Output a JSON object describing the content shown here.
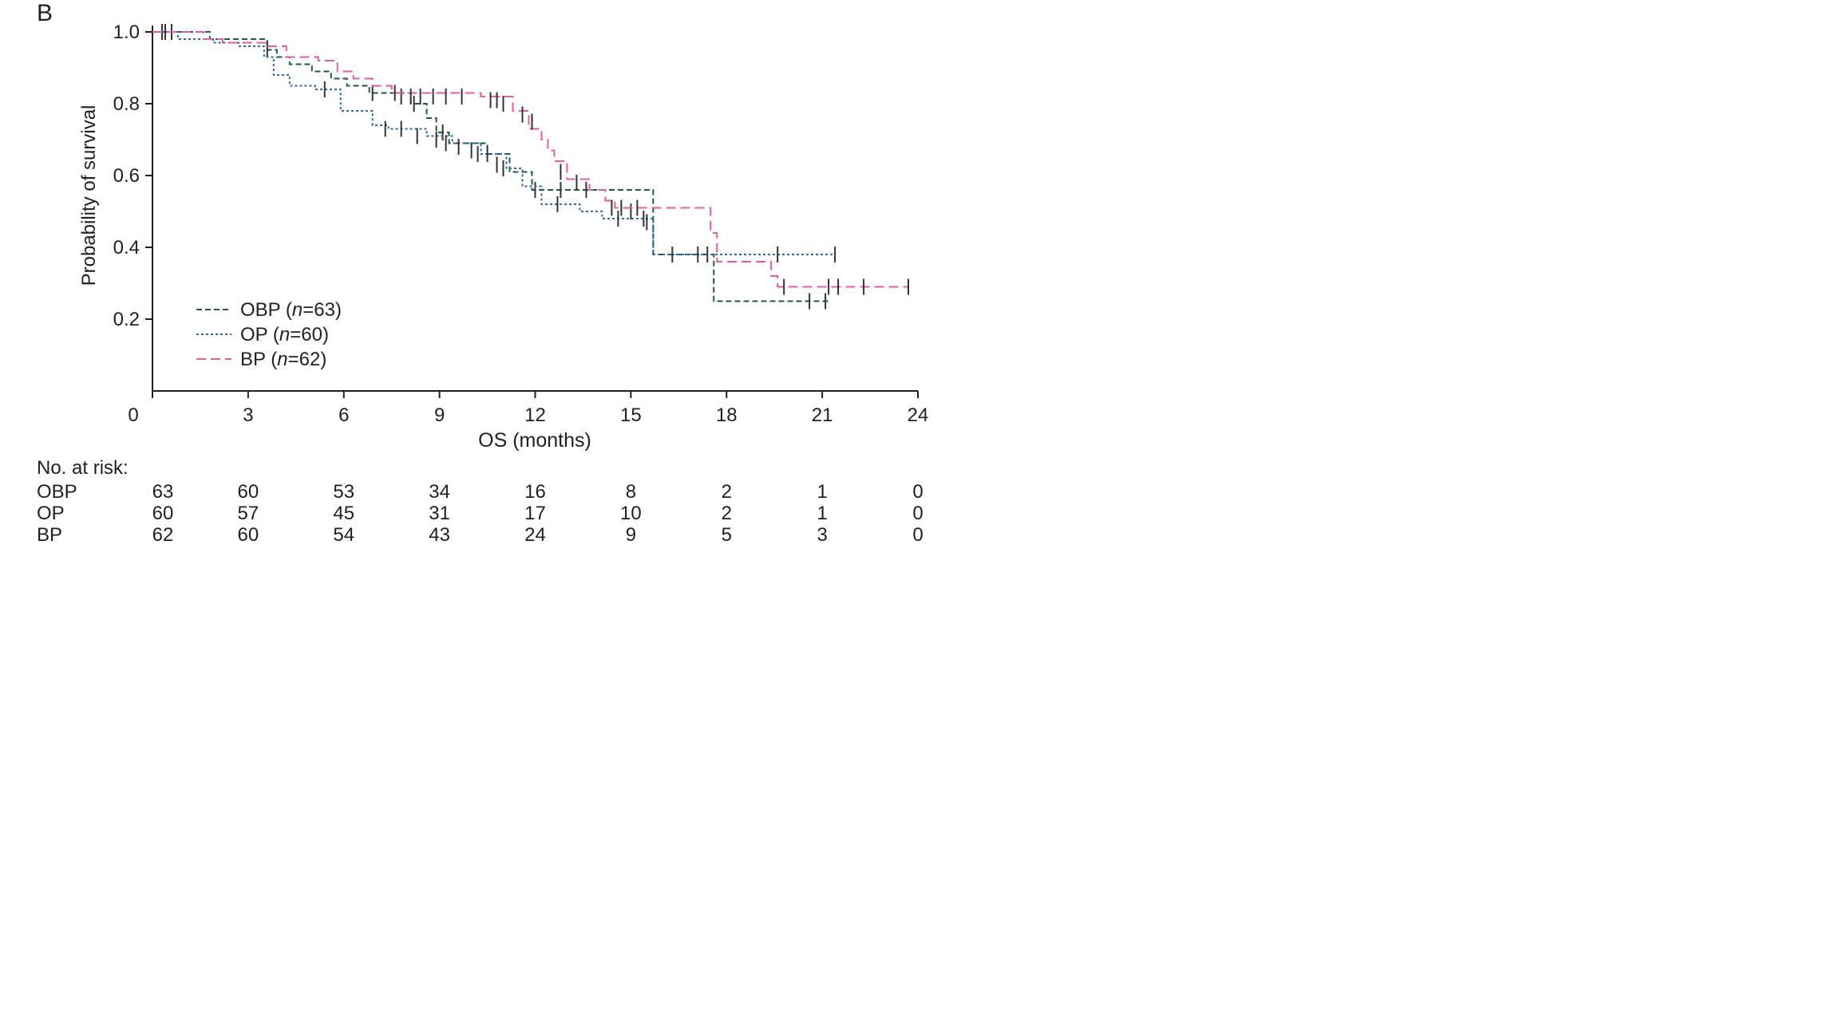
{
  "panel_label": "B",
  "chart_data": {
    "type": "line",
    "subtype": "kaplan-meier",
    "xlabel": "OS (months)",
    "ylabel": "Probability of survival",
    "xlim": [
      0,
      24
    ],
    "ylim": [
      0,
      1.0
    ],
    "xticks": [
      "0",
      "3",
      "6",
      "9",
      "12",
      "15",
      "18",
      "21",
      "24"
    ],
    "yticks": [
      "0.2",
      "0.4",
      "0.6",
      "0.8",
      "1.0"
    ],
    "grid": false,
    "legend_position": "bottom-left",
    "series": [
      {
        "name": "OBP (n=63)",
        "legend_prefix": "OBP (",
        "legend_n": "n",
        "legend_suffix": "=63)",
        "color": "#1e5a4a",
        "dash": "7,4",
        "steps": [
          [
            0,
            1.0
          ],
          [
            1.8,
            0.98
          ],
          [
            3.6,
            0.95
          ],
          [
            3.9,
            0.93
          ],
          [
            4.3,
            0.91
          ],
          [
            5.0,
            0.89
          ],
          [
            5.6,
            0.87
          ],
          [
            6.1,
            0.85
          ],
          [
            6.8,
            0.83
          ],
          [
            8.1,
            0.8
          ],
          [
            8.6,
            0.76
          ],
          [
            8.9,
            0.72
          ],
          [
            9.3,
            0.69
          ],
          [
            10.5,
            0.66
          ],
          [
            11.2,
            0.61
          ],
          [
            11.9,
            0.56
          ],
          [
            15.7,
            0.38
          ],
          [
            17.6,
            0.25
          ],
          [
            21.2,
            0.25
          ]
        ],
        "censors": [
          [
            0.3,
            1.0
          ],
          [
            0.6,
            1.0
          ],
          [
            3.6,
            0.95
          ],
          [
            6.9,
            0.83
          ],
          [
            7.8,
            0.82
          ],
          [
            8.2,
            0.8
          ],
          [
            9.1,
            0.72
          ],
          [
            10.2,
            0.66
          ],
          [
            10.8,
            0.63
          ],
          [
            12.0,
            0.56
          ],
          [
            12.8,
            0.56
          ],
          [
            13.6,
            0.56
          ],
          [
            14.4,
            0.51
          ],
          [
            15.0,
            0.5
          ],
          [
            15.4,
            0.48
          ],
          [
            20.6,
            0.25
          ],
          [
            21.1,
            0.25
          ]
        ]
      },
      {
        "name": "OP (n=60)",
        "legend_prefix": "OP (",
        "legend_n": "n",
        "legend_suffix": "=60)",
        "color": "#2b6aa8",
        "dash": "3,3",
        "steps": [
          [
            0,
            1.0
          ],
          [
            0.8,
            0.98
          ],
          [
            1.9,
            0.97
          ],
          [
            2.7,
            0.96
          ],
          [
            3.5,
            0.93
          ],
          [
            3.8,
            0.88
          ],
          [
            4.3,
            0.85
          ],
          [
            5.1,
            0.84
          ],
          [
            5.9,
            0.78
          ],
          [
            6.9,
            0.74
          ],
          [
            7.4,
            0.73
          ],
          [
            8.6,
            0.71
          ],
          [
            9.4,
            0.69
          ],
          [
            10.3,
            0.66
          ],
          [
            11.1,
            0.62
          ],
          [
            11.6,
            0.57
          ],
          [
            12.2,
            0.52
          ],
          [
            13.4,
            0.5
          ],
          [
            14.1,
            0.48
          ],
          [
            15.7,
            0.38
          ],
          [
            21.4,
            0.38
          ]
        ],
        "censors": [
          [
            0.4,
            1.0
          ],
          [
            5.4,
            0.84
          ],
          [
            7.3,
            0.73
          ],
          [
            7.8,
            0.73
          ],
          [
            8.3,
            0.71
          ],
          [
            8.9,
            0.7
          ],
          [
            9.2,
            0.69
          ],
          [
            9.6,
            0.68
          ],
          [
            10.0,
            0.67
          ],
          [
            10.5,
            0.66
          ],
          [
            11.0,
            0.62
          ],
          [
            12.7,
            0.52
          ],
          [
            14.6,
            0.48
          ],
          [
            15.5,
            0.47
          ],
          [
            16.3,
            0.38
          ],
          [
            17.1,
            0.38
          ],
          [
            17.4,
            0.38
          ],
          [
            19.6,
            0.38
          ],
          [
            21.4,
            0.38
          ]
        ]
      },
      {
        "name": "BP (n=62)",
        "legend_prefix": "BP (",
        "legend_n": "n",
        "legend_suffix": "=62)",
        "color": "#e55ca6",
        "dash": "12,6",
        "steps": [
          [
            0,
            1.0
          ],
          [
            1.6,
            0.98
          ],
          [
            2.2,
            0.97
          ],
          [
            3.6,
            0.96
          ],
          [
            4.2,
            0.93
          ],
          [
            5.2,
            0.92
          ],
          [
            5.8,
            0.89
          ],
          [
            6.3,
            0.87
          ],
          [
            6.9,
            0.85
          ],
          [
            7.5,
            0.83
          ],
          [
            10.3,
            0.82
          ],
          [
            11.3,
            0.78
          ],
          [
            11.8,
            0.73
          ],
          [
            12.2,
            0.7
          ],
          [
            12.4,
            0.67
          ],
          [
            12.6,
            0.64
          ],
          [
            13.0,
            0.59
          ],
          [
            13.7,
            0.56
          ],
          [
            14.2,
            0.53
          ],
          [
            14.5,
            0.51
          ],
          [
            17.5,
            0.44
          ],
          [
            17.7,
            0.36
          ],
          [
            19.4,
            0.32
          ],
          [
            19.6,
            0.29
          ],
          [
            23.7,
            0.29
          ]
        ],
        "censors": [
          [
            7.6,
            0.83
          ],
          [
            8.1,
            0.82
          ],
          [
            8.4,
            0.82
          ],
          [
            8.8,
            0.82
          ],
          [
            9.2,
            0.82
          ],
          [
            9.7,
            0.82
          ],
          [
            10.6,
            0.81
          ],
          [
            10.8,
            0.81
          ],
          [
            11.0,
            0.8
          ],
          [
            11.6,
            0.77
          ],
          [
            11.9,
            0.75
          ],
          [
            12.8,
            0.61
          ],
          [
            13.3,
            0.58
          ],
          [
            14.7,
            0.51
          ],
          [
            15.2,
            0.51
          ],
          [
            19.8,
            0.29
          ],
          [
            21.2,
            0.29
          ],
          [
            21.5,
            0.29
          ],
          [
            22.3,
            0.29
          ],
          [
            23.7,
            0.29
          ]
        ]
      }
    ],
    "risk_table": {
      "title": "No. at risk:",
      "x_values": [
        0,
        3,
        6,
        9,
        12,
        15,
        18,
        21,
        24
      ],
      "rows": [
        {
          "label": "OBP",
          "values": [
            "63",
            "60",
            "53",
            "34",
            "16",
            "8",
            "2",
            "1",
            "0"
          ]
        },
        {
          "label": "OP",
          "values": [
            "60",
            "57",
            "45",
            "31",
            "17",
            "10",
            "2",
            "1",
            "0"
          ]
        },
        {
          "label": "BP",
          "values": [
            "62",
            "60",
            "54",
            "43",
            "24",
            "9",
            "5",
            "3",
            "0"
          ]
        }
      ]
    }
  }
}
